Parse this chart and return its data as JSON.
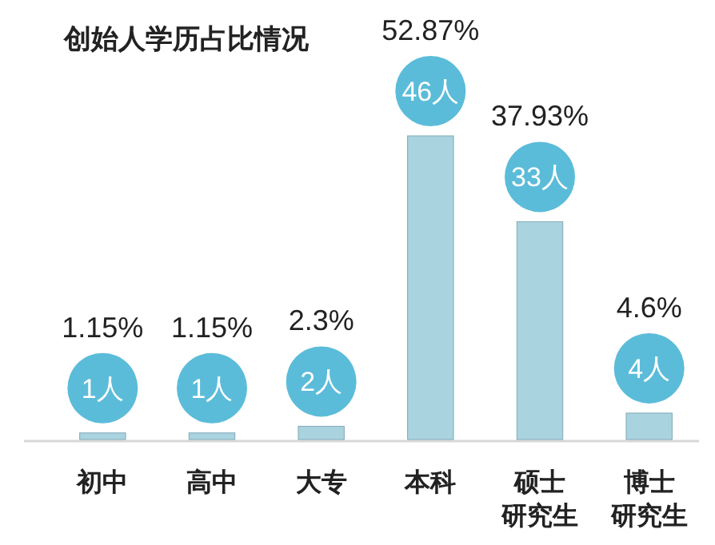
{
  "chart_data": {
    "type": "bar",
    "title": "创始人学历占比情况",
    "categories": [
      "初中",
      "高中",
      "大专",
      "本科",
      "硕士研究生",
      "博士研究生"
    ],
    "values": [
      1.15,
      1.15,
      2.3,
      52.87,
      37.93,
      4.6
    ],
    "color": "#a9d3df",
    "value_labels": [
      "1.15%",
      "1.15%",
      "2.3%",
      "52.87%",
      "37.93%",
      "4.6%"
    ],
    "annotations": [
      {
        "text": "1人",
        "x": "初中",
        "y": 1.15
      },
      {
        "text": "1人",
        "x": "高中",
        "y": 1.15
      },
      {
        "text": "2人",
        "x": "大专",
        "y": 2.3
      },
      {
        "text": "46人",
        "x": "本科",
        "y": 52.87
      },
      {
        "text": "33人",
        "x": "硕士研究生",
        "y": 37.93
      },
      {
        "text": "4人",
        "x": "博士研究生",
        "y": 4.6
      }
    ]
  }
}
